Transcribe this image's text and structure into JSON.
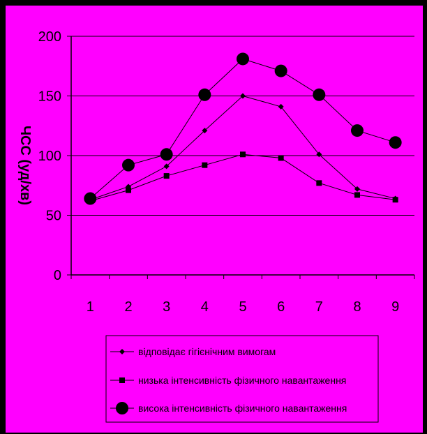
{
  "colors": {
    "background": "#ff00ff",
    "frame": "#000000",
    "line": "#000000"
  },
  "chart_data": {
    "type": "line",
    "title": "",
    "xlabel": "",
    "ylabel": "ЧСС (уд/хв)",
    "ylim": [
      0,
      200
    ],
    "yticks": [
      0,
      50,
      100,
      150,
      200
    ],
    "grid": true,
    "legend_position": "bottom",
    "categories": [
      "1",
      "2",
      "3",
      "4",
      "5",
      "6",
      "7",
      "8",
      "9"
    ],
    "series": [
      {
        "name": "відповідає гігієнічним вимогам",
        "marker": "diamond",
        "values": [
          63,
          74,
          91,
          121,
          150,
          141,
          101,
          72,
          64
        ]
      },
      {
        "name": "низька інтенсивність фізичного навантаження",
        "marker": "square",
        "values": [
          62,
          71,
          83,
          92,
          101,
          98,
          77,
          67,
          63
        ]
      },
      {
        "name": "висока інтенсивність фізичного навантаження",
        "marker": "circle",
        "values": [
          64,
          92,
          101,
          151,
          181,
          171,
          151,
          121,
          111
        ]
      }
    ]
  }
}
